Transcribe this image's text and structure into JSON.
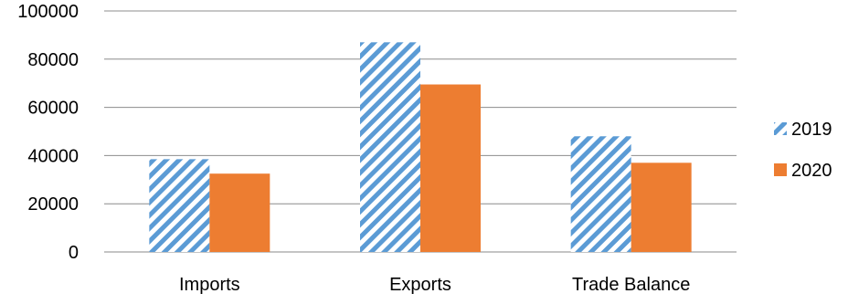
{
  "chart_data": {
    "type": "bar",
    "categories": [
      "Imports",
      "Exports",
      "Trade Balance"
    ],
    "series": [
      {
        "name": "2019",
        "values": [
          38500,
          87000,
          48000
        ],
        "color": "#5B9BD5",
        "pattern": "diagonal-stripes"
      },
      {
        "name": "2020",
        "values": [
          32500,
          69500,
          37000
        ],
        "color": "#ED7D31",
        "pattern": "solid"
      }
    ],
    "yticks": [
      0,
      20000,
      40000,
      60000,
      80000,
      100000
    ],
    "ylim": [
      0,
      100000
    ],
    "grid": true,
    "legend_position": "right"
  }
}
